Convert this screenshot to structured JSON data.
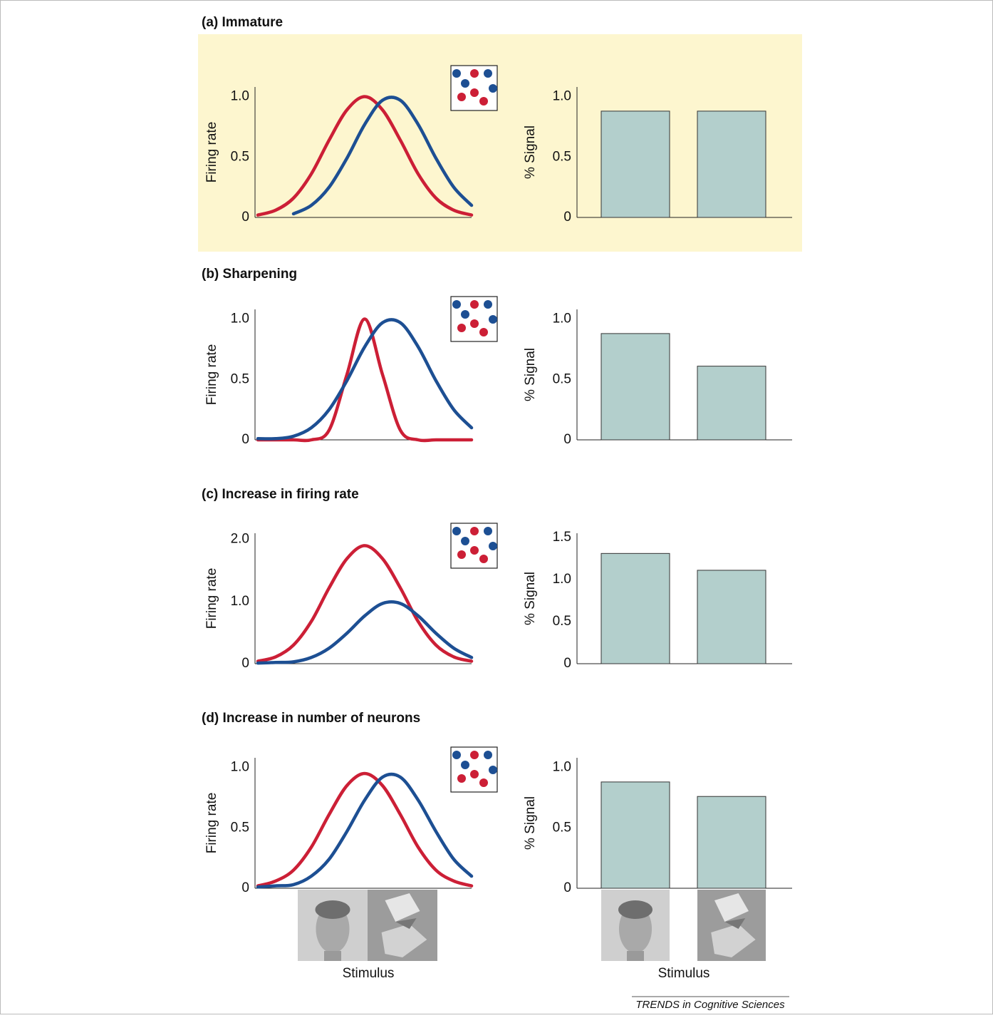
{
  "chart_data": [
    {
      "type": "line",
      "title": "(a) Immature",
      "ylabel": "Firing rate",
      "x": [
        0,
        1,
        2,
        3,
        4,
        5,
        6,
        7,
        8,
        9,
        10,
        11,
        12
      ],
      "xlim": [
        0,
        12
      ],
      "ylim": [
        0,
        1.08
      ],
      "yticks": [
        0,
        0.5,
        {
          "value": 1,
          "label": "1.0"
        }
      ],
      "series": [
        {
          "color": "#cc1f36",
          "values": [
            0.02,
            0.06,
            0.16,
            0.36,
            0.64,
            0.89,
            1.0,
            0.89,
            0.64,
            0.36,
            0.16,
            0.06,
            0.02
          ]
        },
        {
          "color": "#1d4f93",
          "values": [
            null,
            null,
            0.03,
            0.1,
            0.25,
            0.49,
            0.77,
            0.97,
            0.97,
            0.77,
            0.49,
            0.25,
            0.1
          ]
        }
      ]
    },
    {
      "type": "bar",
      "ylabel": "% Signal",
      "categories": [
        null,
        null
      ],
      "values": [
        0.88,
        0.88
      ],
      "color": "#b3cfcc",
      "ylim": [
        0,
        1.08
      ],
      "yticks": [
        0,
        0.5,
        {
          "value": 1,
          "label": "1.0"
        }
      ]
    },
    {
      "type": "line",
      "title": "(b) Sharpening",
      "ylabel": "Firing rate",
      "x": [
        0,
        1,
        2,
        3,
        4,
        5,
        6,
        7,
        8,
        9,
        10,
        11,
        12
      ],
      "xlim": [
        0,
        12
      ],
      "ylim": [
        0,
        1.08
      ],
      "yticks": [
        0,
        0.5,
        {
          "value": 1,
          "label": "1.0"
        }
      ],
      "series": [
        {
          "color": "#cc1f36",
          "values": [
            0,
            0,
            0,
            0,
            0.08,
            0.54,
            1.0,
            0.54,
            0.08,
            0,
            0,
            0,
            0
          ]
        },
        {
          "color": "#1d4f93",
          "values": [
            0.01,
            0.01,
            0.03,
            0.1,
            0.25,
            0.49,
            0.77,
            0.97,
            0.97,
            0.77,
            0.49,
            0.25,
            0.1
          ]
        }
      ]
    },
    {
      "type": "bar",
      "ylabel": "% Signal",
      "categories": [
        null,
        null
      ],
      "values": [
        0.88,
        0.61
      ],
      "color": "#b3cfcc",
      "ylim": [
        0,
        1.08
      ],
      "yticks": [
        0,
        0.5,
        {
          "value": 1,
          "label": "1.0"
        }
      ]
    },
    {
      "type": "line",
      "title": "(c) Increase in firing rate",
      "ylabel": "Firing rate",
      "x": [
        0,
        1,
        2,
        3,
        4,
        5,
        6,
        7,
        8,
        9,
        10,
        11,
        12
      ],
      "xlim": [
        0,
        12
      ],
      "ylim": [
        0,
        2.1
      ],
      "yticks": [
        0,
        {
          "value": 1,
          "label": "1.0"
        },
        {
          "value": 2,
          "label": "2.0"
        }
      ],
      "series": [
        {
          "color": "#cc1f36",
          "values": [
            0.04,
            0.11,
            0.3,
            0.68,
            1.22,
            1.69,
            1.9,
            1.69,
            1.22,
            0.68,
            0.3,
            0.11,
            0.04
          ]
        },
        {
          "color": "#1d4f93",
          "values": [
            0.01,
            0.02,
            0.03,
            0.1,
            0.25,
            0.49,
            0.77,
            0.97,
            0.97,
            0.77,
            0.49,
            0.25,
            0.1
          ]
        }
      ]
    },
    {
      "type": "bar",
      "ylabel": "% Signal",
      "categories": [
        null,
        null
      ],
      "values": [
        1.31,
        1.11
      ],
      "color": "#b3cfcc",
      "ylim": [
        0,
        1.55
      ],
      "yticks": [
        0,
        0.5,
        {
          "value": 1,
          "label": "1.0"
        },
        1.5
      ]
    },
    {
      "type": "line",
      "title": "(d) Increase in number of neurons",
      "ylabel": "Firing rate",
      "xlabel": "Stimulus",
      "x": [
        0,
        1,
        2,
        3,
        4,
        5,
        6,
        7,
        8,
        9,
        10,
        11,
        12
      ],
      "xlim": [
        0,
        12
      ],
      "ylim": [
        0,
        1.08
      ],
      "yticks": [
        0,
        0.5,
        {
          "value": 1,
          "label": "1.0"
        }
      ],
      "series": [
        {
          "color": "#cc1f36",
          "values": [
            0.02,
            0.06,
            0.15,
            0.34,
            0.61,
            0.85,
            0.95,
            0.85,
            0.61,
            0.34,
            0.15,
            0.06,
            0.02
          ]
        },
        {
          "color": "#1d4f93",
          "values": [
            0.01,
            0.02,
            0.03,
            0.1,
            0.24,
            0.47,
            0.73,
            0.92,
            0.92,
            0.73,
            0.47,
            0.24,
            0.1
          ]
        }
      ]
    },
    {
      "type": "bar",
      "ylabel": "% Signal",
      "xlabel": "Stimulus",
      "categories": [
        null,
        null
      ],
      "values": [
        0.88,
        0.76
      ],
      "color": "#b3cfcc",
      "ylim": [
        0,
        1.08
      ],
      "yticks": [
        0,
        0.5,
        {
          "value": 1,
          "label": "1.0"
        }
      ]
    }
  ],
  "footer": "TRENDS in Cognitive Sciences"
}
